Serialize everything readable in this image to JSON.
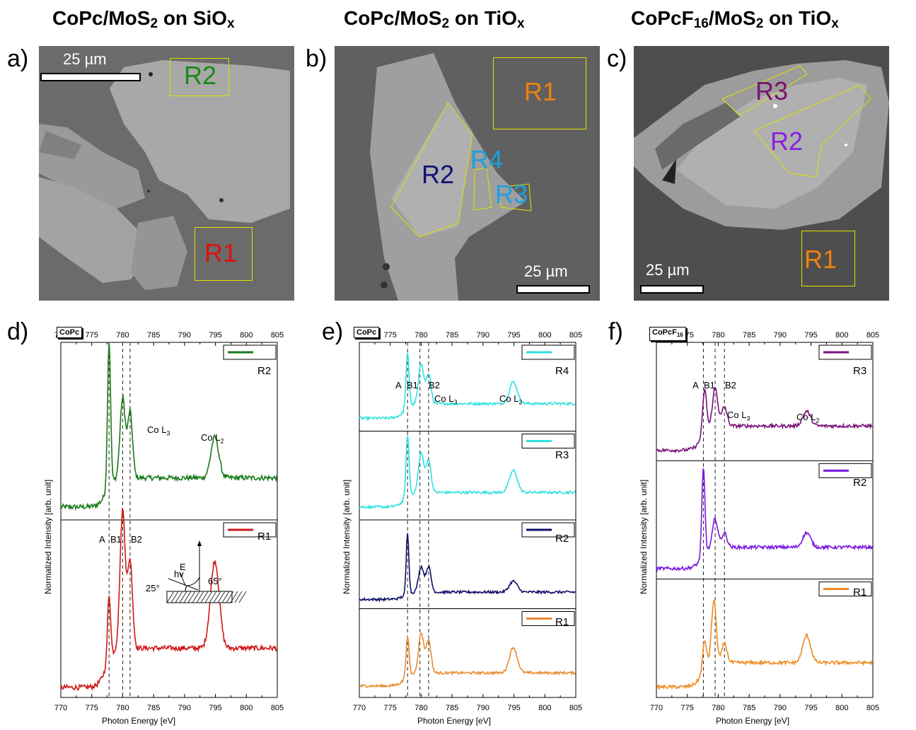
{
  "titles": {
    "a": {
      "main": "CoPc/MoS",
      "sub": "2",
      "rest": " on SiO",
      "sub2": "x"
    },
    "b": {
      "main": "CoPc/MoS",
      "sub": "2",
      "rest": " on TiO",
      "sub2": "x"
    },
    "c": {
      "main": "CoPcF",
      "sub0": "16",
      "mid": "/MoS",
      "sub": "2",
      "rest": " on TiO",
      "sub2": "x"
    }
  },
  "panel_labels": {
    "a": "a)",
    "b": "b)",
    "c": "c)",
    "d": "d)",
    "e": "e)",
    "f": "f)"
  },
  "images": {
    "a": {
      "scalebar": "25 µm",
      "regions": [
        {
          "label": "R2",
          "color": "#1a8a1a"
        },
        {
          "label": "R1",
          "color": "#e01010"
        }
      ]
    },
    "b": {
      "scalebar": "25 µm",
      "regions": [
        {
          "label": "R1",
          "color": "#f08010"
        },
        {
          "label": "R2",
          "color": "#10107a"
        },
        {
          "label": "R4",
          "color": "#1aa0e0"
        },
        {
          "label": "R3",
          "color": "#1aa0e0"
        }
      ]
    },
    "c": {
      "scalebar": "25 µm",
      "regions": [
        {
          "label": "R3",
          "color": "#7a1070"
        },
        {
          "label": "R2",
          "color": "#8a20e0"
        },
        {
          "label": "R1",
          "color": "#f08010"
        }
      ]
    }
  },
  "marker_labels": {
    "A": "A",
    "B1": "B1",
    "B2": "B2",
    "CoL3": "Co L",
    "CoL3sub": "3",
    "CoL2": "Co L",
    "CoL2sub": "2"
  },
  "inset": {
    "hv": "hv",
    "E": "E",
    "angle1": "25°",
    "angle2": "65°"
  },
  "badges": {
    "d": "CoPc",
    "e": "CoPc",
    "f": "CoPcF",
    "f_sub": "16"
  },
  "axes": {
    "xlabel": "Photon Energy [eV]",
    "ylabel": "Normalized Intensity [arb. unit]",
    "xticks": [
      770,
      775,
      780,
      785,
      790,
      795,
      800,
      805
    ]
  },
  "chart_data": [
    {
      "type": "line",
      "panel": "d",
      "xlim": [
        770,
        805
      ],
      "markers": [
        777.8,
        780.0,
        781.2
      ],
      "series": [
        {
          "name": "R2",
          "color": "#1a7a1a",
          "peaks": [
            [
              777.8,
              1.0,
              0.35
            ],
            [
              780.0,
              0.55,
              0.6
            ],
            [
              781.2,
              0.45,
              0.55
            ],
            [
              794.9,
              0.28,
              0.9
            ]
          ],
          "baseline": 0.05,
          "edge": 0.2
        },
        {
          "name": "R1",
          "color": "#d01818",
          "peaks": [
            [
              777.8,
              0.45,
              0.35
            ],
            [
              780.0,
              0.95,
              0.6
            ],
            [
              781.2,
              0.6,
              0.55
            ],
            [
              794.9,
              0.6,
              1.0
            ]
          ],
          "baseline": 0.03,
          "edge": 0.27
        }
      ]
    },
    {
      "type": "line",
      "panel": "e",
      "xlim": [
        770,
        805
      ],
      "markers": [
        777.8,
        779.8,
        781.2
      ],
      "series": [
        {
          "name": "R4",
          "color": "#30e0e0",
          "peaks": [
            [
              777.8,
              0.75,
              0.35
            ],
            [
              780.0,
              0.55,
              0.6
            ],
            [
              781.2,
              0.4,
              0.55
            ],
            [
              794.9,
              0.3,
              0.9
            ]
          ],
          "baseline": 0.1,
          "edge": 0.2
        },
        {
          "name": "R3",
          "color": "#30e0e0",
          "peaks": [
            [
              777.8,
              0.85,
              0.35
            ],
            [
              780.0,
              0.55,
              0.6
            ],
            [
              781.2,
              0.45,
              0.55
            ],
            [
              794.9,
              0.3,
              0.9
            ]
          ],
          "baseline": 0.1,
          "edge": 0.2
        },
        {
          "name": "R2",
          "color": "#10106a",
          "peaks": [
            [
              777.8,
              0.85,
              0.3
            ],
            [
              780.0,
              0.35,
              0.6
            ],
            [
              781.2,
              0.35,
              0.55
            ],
            [
              794.9,
              0.15,
              0.9
            ]
          ],
          "baseline": 0.05,
          "edge": 0.1
        },
        {
          "name": "R1",
          "color": "#e88a30",
          "peaks": [
            [
              777.8,
              0.55,
              0.35
            ],
            [
              780.0,
              0.55,
              0.6
            ],
            [
              781.2,
              0.45,
              0.55
            ],
            [
              794.9,
              0.35,
              0.9
            ]
          ],
          "baseline": 0.08,
          "edge": 0.18
        }
      ]
    },
    {
      "type": "line",
      "panel": "f",
      "xlim": [
        770,
        805
      ],
      "markers": [
        777.6,
        779.5,
        781.0
      ],
      "series": [
        {
          "name": "R3",
          "color": "#7a107a",
          "peaks": [
            [
              777.8,
              0.45,
              0.45
            ],
            [
              779.5,
              0.4,
              0.6
            ],
            [
              781.0,
              0.2,
              0.6
            ],
            [
              794.3,
              0.15,
              0.9
            ]
          ],
          "baseline": 0.05,
          "edge": 0.25
        },
        {
          "name": "R2",
          "color": "#7a18e0",
          "peaks": [
            [
              777.6,
              0.9,
              0.35
            ],
            [
              779.5,
              0.3,
              0.6
            ],
            [
              781.0,
              0.15,
              0.6
            ],
            [
              794.3,
              0.15,
              0.9
            ]
          ],
          "baseline": 0.05,
          "edge": 0.22
        },
        {
          "name": "R1",
          "color": "#f08a20",
          "peaks": [
            [
              777.8,
              0.3,
              0.45
            ],
            [
              779.3,
              0.65,
              0.55
            ],
            [
              781.0,
              0.2,
              0.6
            ],
            [
              794.3,
              0.28,
              0.9
            ]
          ],
          "baseline": 0.05,
          "edge": 0.25
        }
      ]
    }
  ]
}
